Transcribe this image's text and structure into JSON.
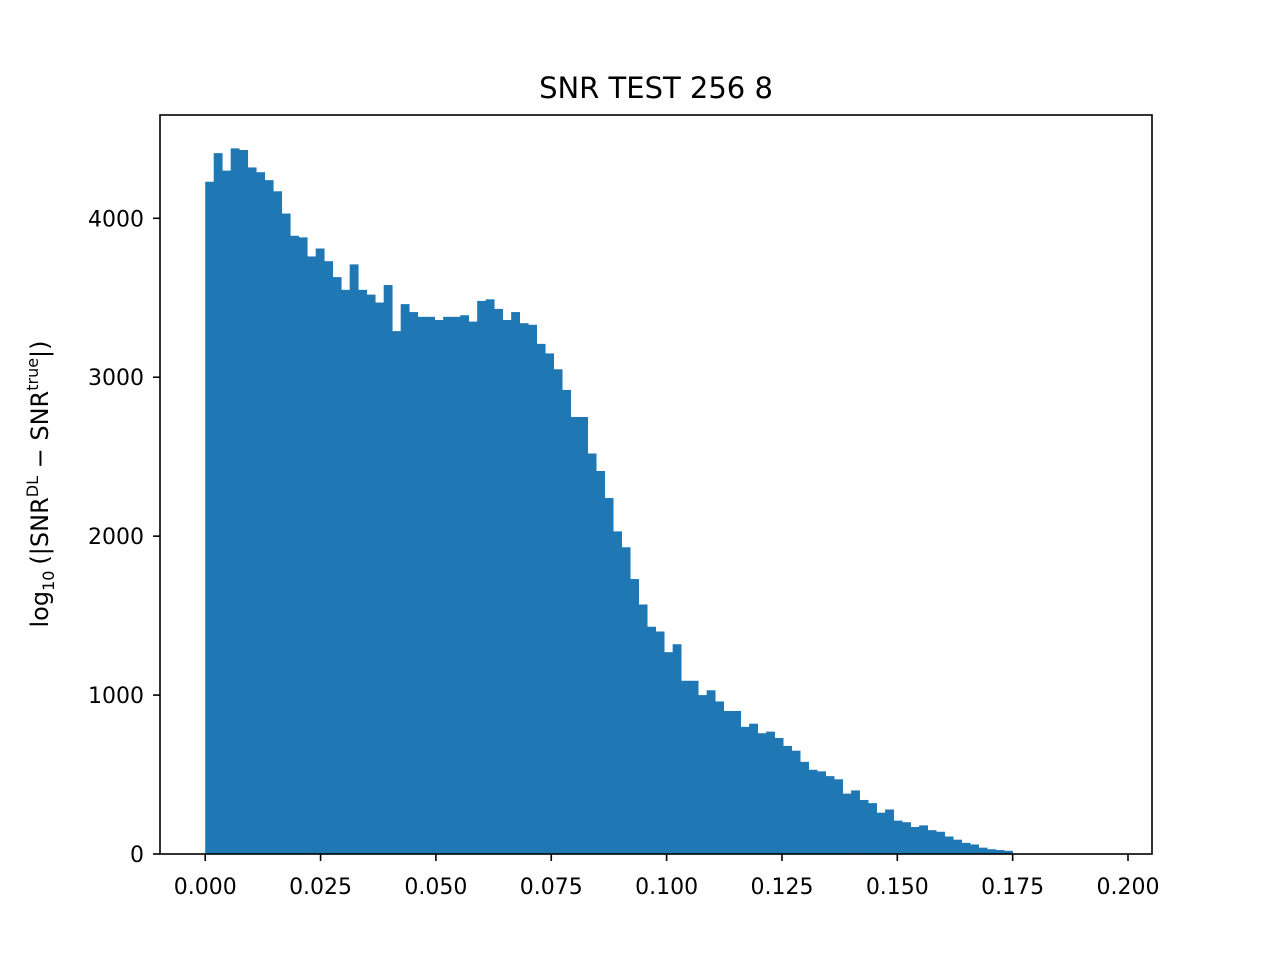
{
  "chart_data": {
    "type": "bar",
    "title": "SNR TEST 256 8",
    "xlabel": "",
    "ylabel": {
      "prefix": "log",
      "prefix_sub": "10",
      "open": "(|SNR",
      "sup1": "DL",
      "middle": " − SNR",
      "sup2": "true",
      "close": "|)"
    },
    "xlim": [
      -0.0098,
      0.2052
    ],
    "ylim": [
      0,
      4650
    ],
    "x_ticks": [
      0.0,
      0.025,
      0.05,
      0.075,
      0.1,
      0.125,
      0.15,
      0.175,
      0.2
    ],
    "x_tick_labels": [
      "0.000",
      "0.025",
      "0.050",
      "0.075",
      "0.100",
      "0.125",
      "0.150",
      "0.175",
      "0.200"
    ],
    "y_ticks": [
      0,
      1000,
      2000,
      3000,
      4000
    ],
    "y_tick_labels": [
      "0",
      "1000",
      "2000",
      "3000",
      "4000"
    ],
    "bin_start": 0.0,
    "bin_width": 0.001842,
    "values": [
      4230,
      4410,
      4300,
      4440,
      4430,
      4320,
      4290,
      4240,
      4170,
      4030,
      3890,
      3880,
      3760,
      3810,
      3730,
      3630,
      3550,
      3710,
      3550,
      3520,
      3470,
      3580,
      3290,
      3460,
      3410,
      3380,
      3380,
      3360,
      3380,
      3380,
      3390,
      3350,
      3480,
      3490,
      3430,
      3360,
      3410,
      3340,
      3330,
      3210,
      3150,
      3050,
      2920,
      2750,
      2750,
      2520,
      2410,
      2240,
      2030,
      1930,
      1730,
      1570,
      1430,
      1400,
      1270,
      1320,
      1090,
      1090,
      1000,
      1030,
      960,
      900,
      900,
      800,
      820,
      760,
      770,
      730,
      680,
      650,
      580,
      530,
      520,
      490,
      470,
      380,
      400,
      340,
      320,
      260,
      280,
      210,
      200,
      170,
      180,
      150,
      140,
      110,
      90,
      70,
      60,
      40,
      30,
      25,
      20
    ],
    "grid": false,
    "bar_color": "#1f77b4"
  }
}
